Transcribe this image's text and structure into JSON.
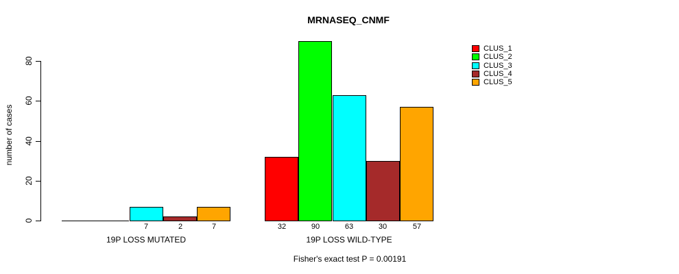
{
  "title": "MRNASEQ_CNMF",
  "chart_data": {
    "type": "bar",
    "title": "MRNASEQ_CNMF",
    "subtitle": "",
    "xlabel": "",
    "ylabel": "number of cases",
    "categories": [
      "19P LOSS MUTATED",
      "19P LOSS WILD-TYPE"
    ],
    "series": [
      {
        "name": "CLUS_1",
        "color": "#FF0000",
        "values": [
          0,
          32
        ]
      },
      {
        "name": "CLUS_2",
        "color": "#00FF00",
        "values": [
          0,
          90
        ]
      },
      {
        "name": "CLUS_3",
        "color": "#00FFFF",
        "values": [
          7,
          63
        ]
      },
      {
        "name": "CLUS_4",
        "color": "#A52A2A",
        "values": [
          2,
          30
        ]
      },
      {
        "name": "CLUS_5",
        "color": "#FFA500",
        "values": [
          7,
          57
        ]
      }
    ],
    "bar_value_labels": [
      [
        "",
        "",
        "7",
        "2",
        "7"
      ],
      [
        "32",
        "90",
        "63",
        "30",
        "57"
      ]
    ],
    "y_ticks": [
      0,
      20,
      40,
      60,
      80
    ],
    "ylim": [
      0,
      93
    ],
    "grid": false,
    "legend_position": "right",
    "legend_items": [
      "CLUS_1",
      "CLUS_2",
      "CLUS_3",
      "CLUS_4",
      "CLUS_5"
    ],
    "annotation": "Fisher's exact test P = 0.00191",
    "axis_color": "#000000",
    "background_color": "#FFFFFF"
  }
}
